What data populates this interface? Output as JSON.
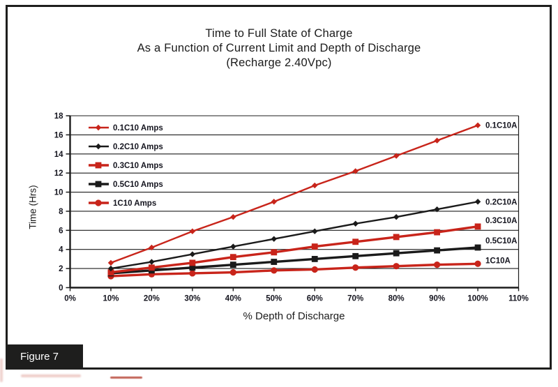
{
  "figure": {
    "caption": "Figure 7"
  },
  "chart_data": {
    "type": "line",
    "title_lines": [
      "Time to Full State of Charge",
      "As a Function of Current Limit and Depth of Discharge",
      "(Recharge 2.40Vpc)"
    ],
    "xlabel": "% Depth of Discharge",
    "ylabel": "Time (Hrs)",
    "grid": "horizontal",
    "legend_position": "upper-left-inside",
    "x_axis": {
      "range_pct": [
        0,
        110
      ],
      "ticks_pct": [
        0,
        10,
        20,
        30,
        40,
        50,
        60,
        70,
        80,
        90,
        100,
        110
      ],
      "tick_labels": [
        "0%",
        "10%",
        "20%",
        "30%",
        "40%",
        "50%",
        "60%",
        "70%",
        "80%",
        "90%",
        "100%",
        "110%"
      ]
    },
    "y_axis": {
      "min": 0,
      "max": 18,
      "tick_step": 2,
      "tick_labels": [
        "0",
        "2",
        "4",
        "6",
        "8",
        "10",
        "12",
        "14",
        "16",
        "18"
      ]
    },
    "x_values_pct": [
      10,
      20,
      30,
      40,
      50,
      60,
      70,
      80,
      90,
      100
    ],
    "series": [
      {
        "name": "0.1C10 Amps",
        "end_label": "0.1C10A",
        "color": "#c8241a",
        "marker": "diamond",
        "line": "thin",
        "values_hrs": [
          2.6,
          4.2,
          5.9,
          7.4,
          9.0,
          10.7,
          12.2,
          13.8,
          15.4,
          17.0
        ]
      },
      {
        "name": "0.2C10 Amps",
        "end_label": "0.2C10A",
        "color": "#1a1a1a",
        "marker": "diamond",
        "line": "thin",
        "values_hrs": [
          2.0,
          2.7,
          3.5,
          4.3,
          5.1,
          5.9,
          6.7,
          7.4,
          8.2,
          9.0
        ]
      },
      {
        "name": "0.3C10 Amps",
        "end_label": "0.3C10A",
        "color": "#c8241a",
        "marker": "square",
        "line": "thick",
        "values_hrs": [
          1.6,
          2.1,
          2.6,
          3.2,
          3.7,
          4.3,
          4.8,
          5.3,
          5.8,
          6.4
        ]
      },
      {
        "name": "0.5C10 Amps",
        "end_label": "0.5C10A",
        "color": "#1a1a1a",
        "marker": "square",
        "line": "thick",
        "values_hrs": [
          1.5,
          1.8,
          2.1,
          2.4,
          2.7,
          3.0,
          3.3,
          3.6,
          3.9,
          4.2
        ]
      },
      {
        "name": "1C10 Amps",
        "end_label": "1C10A",
        "color": "#c8241a",
        "marker": "circle",
        "line": "thick",
        "values_hrs": [
          1.2,
          1.4,
          1.5,
          1.6,
          1.8,
          1.9,
          2.1,
          2.25,
          2.4,
          2.5
        ]
      }
    ]
  }
}
